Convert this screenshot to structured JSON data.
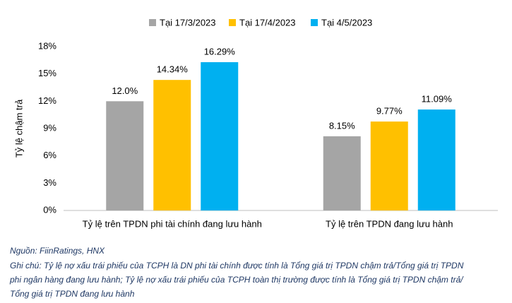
{
  "chart_data": {
    "type": "bar",
    "ylabel": "Tỷ lệ chậm trả",
    "categories": [
      "Tỷ lệ trên TPDN phi tài chính đang lưu hành",
      "Tỷ lệ trên TPDN đang lưu hành"
    ],
    "series": [
      {
        "name": "Tại 17/3/2023",
        "color": "#a5a5a5",
        "values": [
          12.0,
          8.15
        ],
        "value_labels": [
          "12.0%",
          "8.15%"
        ]
      },
      {
        "name": "Tại 17/4/2023",
        "color": "#ffc000",
        "values": [
          14.34,
          9.77
        ],
        "value_labels": [
          "14.34%",
          "9.77%"
        ]
      },
      {
        "name": "Tại 4/5/2023",
        "color": "#00b0f0",
        "values": [
          16.29,
          11.09
        ],
        "value_labels": [
          "16.29%",
          "11.09%"
        ]
      }
    ],
    "ylim": [
      0,
      18
    ],
    "yticks": [
      {
        "value": 0,
        "label": "0%"
      },
      {
        "value": 3,
        "label": "3%"
      },
      {
        "value": 6,
        "label": "6%"
      },
      {
        "value": 9,
        "label": "9%"
      },
      {
        "value": 12,
        "label": "12%"
      },
      {
        "value": 15,
        "label": "15%"
      },
      {
        "value": 18,
        "label": "18%"
      }
    ],
    "grid": false,
    "legend": "top",
    "source": "Nguồn: FiinRatings, HNX",
    "notes": [
      "Ghi chú: Tỷ lệ nợ xấu trái phiếu của TCPH là DN phi tài chính được tính là Tổng giá trị TPDN chậm trả/Tổng giá trị TPDN",
      "phi ngân hàng đang lưu hành; Tỷ lệ nợ xấu trái phiếu của TCPH toàn thị trường được tính là Tổng giá trị TPDN chậm trả/",
      "Tổng giá trị TPDN đang lưu hành"
    ]
  }
}
